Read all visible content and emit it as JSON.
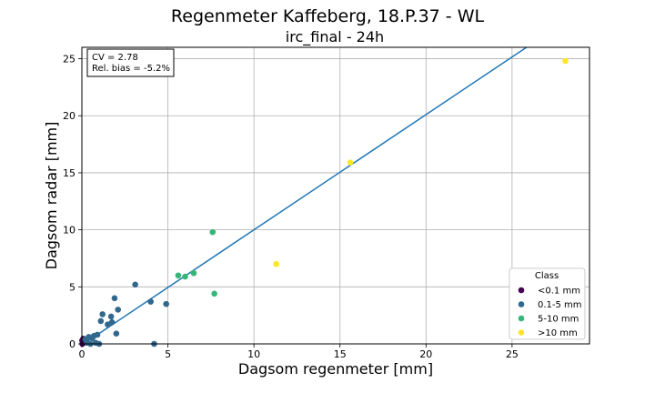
{
  "chart_data": {
    "type": "scatter",
    "title": "Regenmeter Kaffeberg, 18.P.37 - WL",
    "subtitle": "irc_final - 24h",
    "xlabel": "Dagsom regenmeter [mm]",
    "ylabel": "Dagsom radar [mm]",
    "xlim": [
      0,
      29.5
    ],
    "ylim": [
      0,
      26
    ],
    "xticks": [
      0,
      5,
      10,
      15,
      20,
      25
    ],
    "yticks": [
      0,
      5,
      10,
      15,
      20,
      25
    ],
    "grid": true,
    "stats": {
      "cv": "CV = 2.78",
      "bias": "Rel. bias = -5.2%"
    },
    "fit_line": {
      "slope": 1.01,
      "intercept": -0.1
    },
    "fit_color": "#1f77b4",
    "legend": {
      "title": "Class",
      "placement": "lower-right"
    },
    "series": [
      {
        "name": "<0.1 mm",
        "color": "#440154",
        "points": [
          [
            0.02,
            0.3
          ],
          [
            0.05,
            0.05
          ],
          [
            0.08,
            0.45
          ],
          [
            0.03,
            0.0
          ],
          [
            0.1,
            0.2
          ],
          [
            0.06,
            0.1
          ]
        ]
      },
      {
        "name": "0.1-5 mm",
        "color": "#31688e",
        "points": [
          [
            0.2,
            0.4
          ],
          [
            0.3,
            0.1
          ],
          [
            0.4,
            0.6
          ],
          [
            0.5,
            0.0
          ],
          [
            0.6,
            0.5
          ],
          [
            0.7,
            0.7
          ],
          [
            0.8,
            0.1
          ],
          [
            0.9,
            0.8
          ],
          [
            1.0,
            0.0
          ],
          [
            1.1,
            2.0
          ],
          [
            1.2,
            2.6
          ],
          [
            1.5,
            1.7
          ],
          [
            1.7,
            2.4
          ],
          [
            1.75,
            1.9
          ],
          [
            1.9,
            4.0
          ],
          [
            2.0,
            0.9
          ],
          [
            2.1,
            3.0
          ],
          [
            3.1,
            5.2
          ],
          [
            4.0,
            3.7
          ],
          [
            4.2,
            0.0
          ],
          [
            4.9,
            3.5
          ]
        ]
      },
      {
        "name": "5-10 mm",
        "color": "#35b779",
        "points": [
          [
            5.6,
            6.0
          ],
          [
            6.0,
            5.9
          ],
          [
            6.5,
            6.2
          ],
          [
            7.6,
            9.8
          ],
          [
            7.7,
            4.4
          ]
        ]
      },
      {
        "name": ">10 mm",
        "color": "#fde725",
        "points": [
          [
            11.3,
            7.0
          ],
          [
            15.6,
            15.9
          ],
          [
            28.1,
            24.8
          ]
        ]
      }
    ]
  }
}
